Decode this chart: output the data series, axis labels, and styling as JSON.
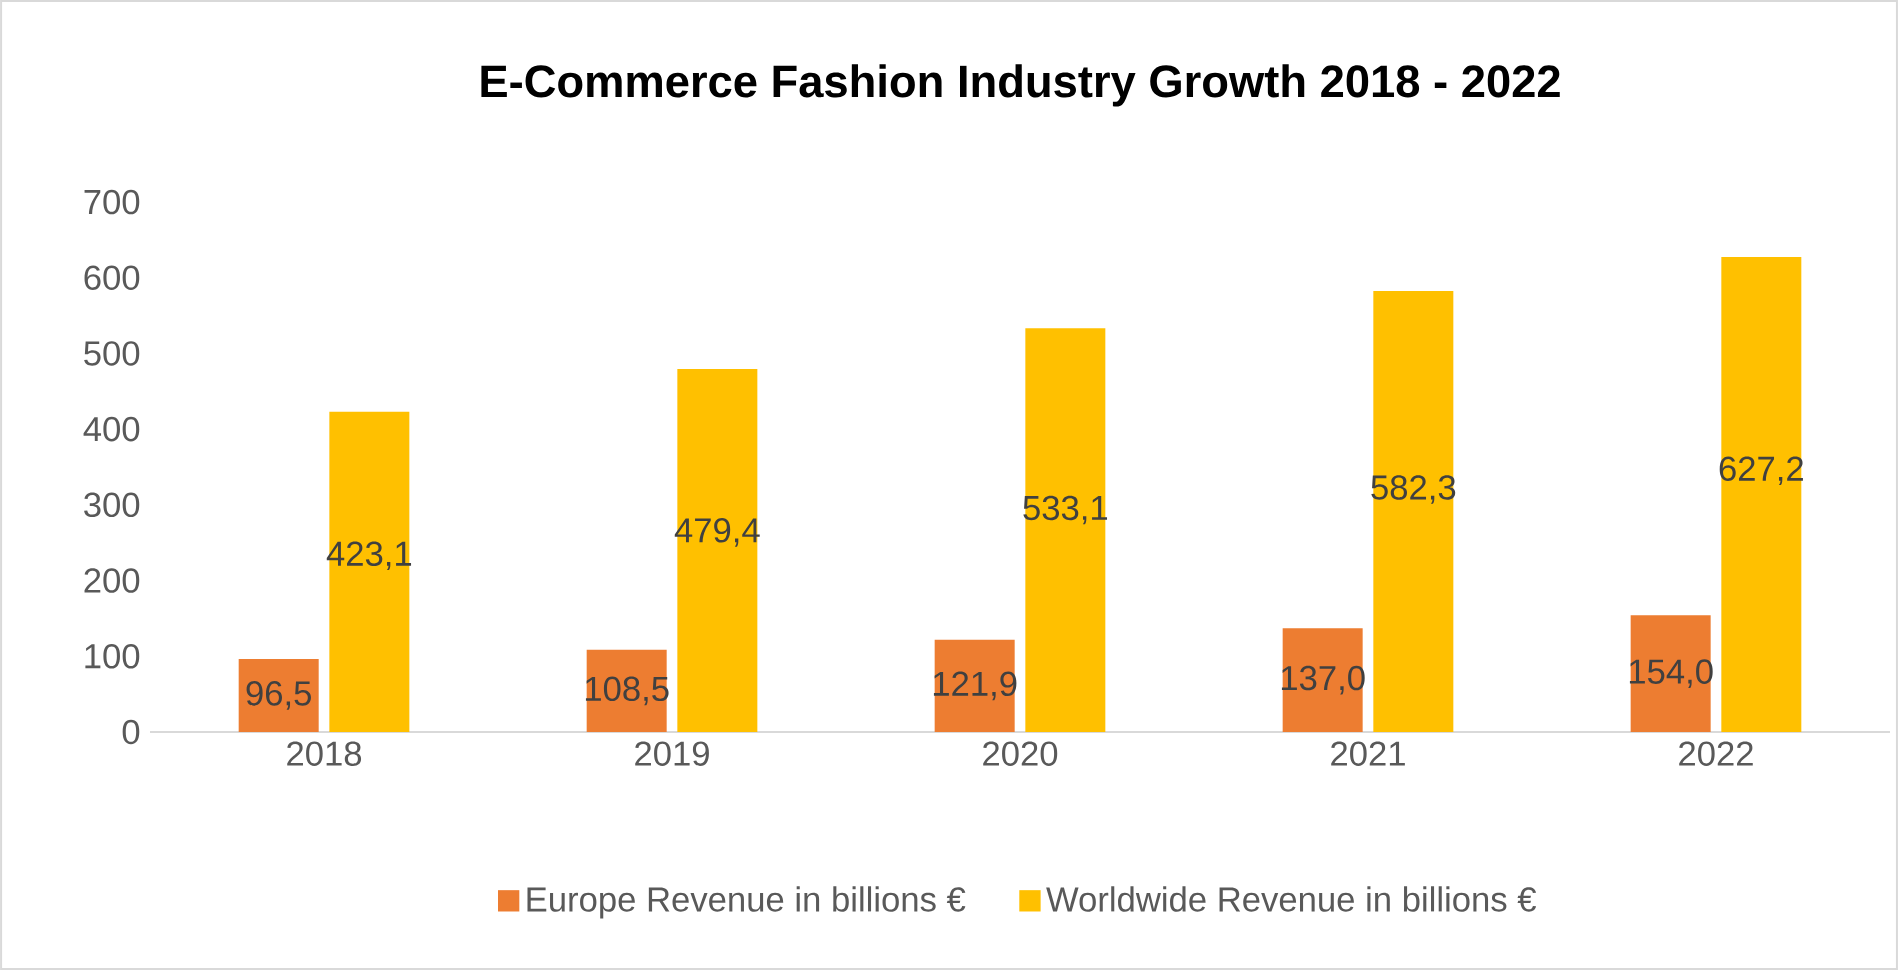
{
  "chart_data": {
    "type": "bar",
    "title": "E-Commerce Fashion Industry Growth 2018 - 2022",
    "categories": [
      "2018",
      "2019",
      "2020",
      "2021",
      "2022"
    ],
    "series": [
      {
        "name": "Europe Revenue in billions €",
        "color": "#ed7d31",
        "values": [
          96.5,
          108.5,
          121.9,
          137.0,
          154.0
        ],
        "value_labels": [
          "96,5",
          "108,5",
          "121,9",
          "137,0",
          "154,0"
        ]
      },
      {
        "name": "Worldwide Revenue in billions €",
        "color": "#ffc000",
        "values": [
          423.1,
          479.4,
          533.1,
          582.3,
          627.2
        ],
        "value_labels": [
          "423,1",
          "479,4",
          "533,1",
          "582,3",
          "627,2"
        ]
      }
    ],
    "ylim": [
      0,
      700
    ],
    "yticks": [
      0,
      100,
      200,
      300,
      400,
      500,
      600,
      700
    ],
    "grid": false,
    "legend": "bottom"
  }
}
